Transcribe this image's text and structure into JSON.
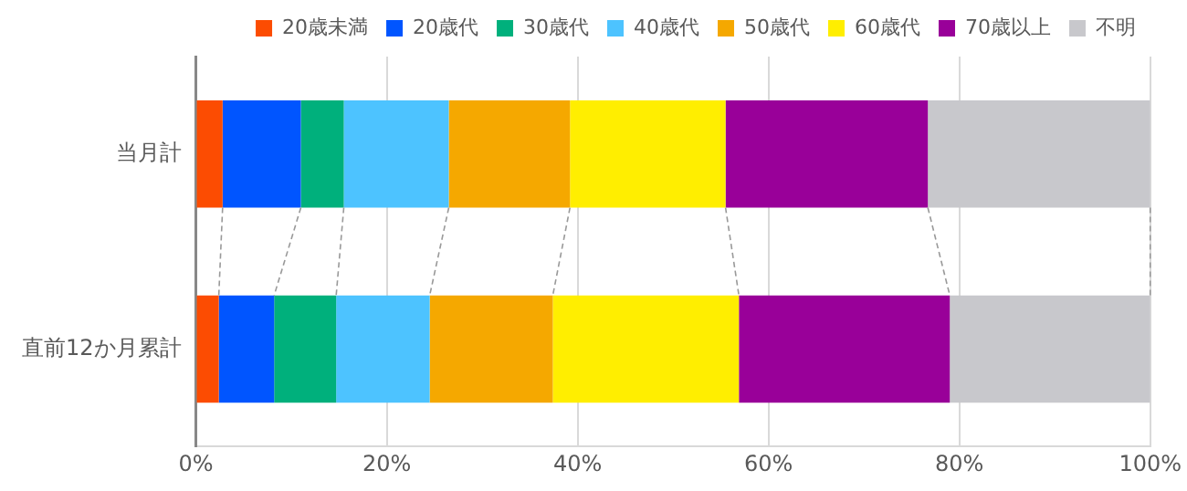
{
  "chart_data": {
    "type": "bar",
    "orientation": "horizontal",
    "stacked": true,
    "categories": [
      "当月計",
      "直前12か月累計"
    ],
    "series": [
      {
        "name": "20歳未満",
        "color": "#fc4c02",
        "values": [
          2.8,
          2.4
        ]
      },
      {
        "name": "20歳代",
        "color": "#0055ff",
        "values": [
          8.2,
          5.8
        ]
      },
      {
        "name": "30歳代",
        "color": "#00b07c",
        "values": [
          4.5,
          6.5
        ]
      },
      {
        "name": "40歳代",
        "color": "#4dc3ff",
        "values": [
          11.0,
          9.8
        ]
      },
      {
        "name": "50歳代",
        "color": "#f5a800",
        "values": [
          12.7,
          12.9
        ]
      },
      {
        "name": "60歳代",
        "color": "#ffee00",
        "values": [
          16.3,
          19.5
        ]
      },
      {
        "name": "70歳以上",
        "color": "#990099",
        "values": [
          21.2,
          22.1
        ]
      },
      {
        "name": "不明",
        "color": "#c8c8cc",
        "values": [
          23.3,
          21.0
        ]
      }
    ],
    "xlim": [
      0,
      100
    ],
    "xticks": [
      {
        "value": 0,
        "label": "0%"
      },
      {
        "value": 20,
        "label": "20%"
      },
      {
        "value": 40,
        "label": "40%"
      },
      {
        "value": 60,
        "label": "60%"
      },
      {
        "value": 80,
        "label": "80%"
      },
      {
        "value": 100,
        "label": "100%"
      }
    ],
    "grid": "x",
    "legend": "top right"
  }
}
